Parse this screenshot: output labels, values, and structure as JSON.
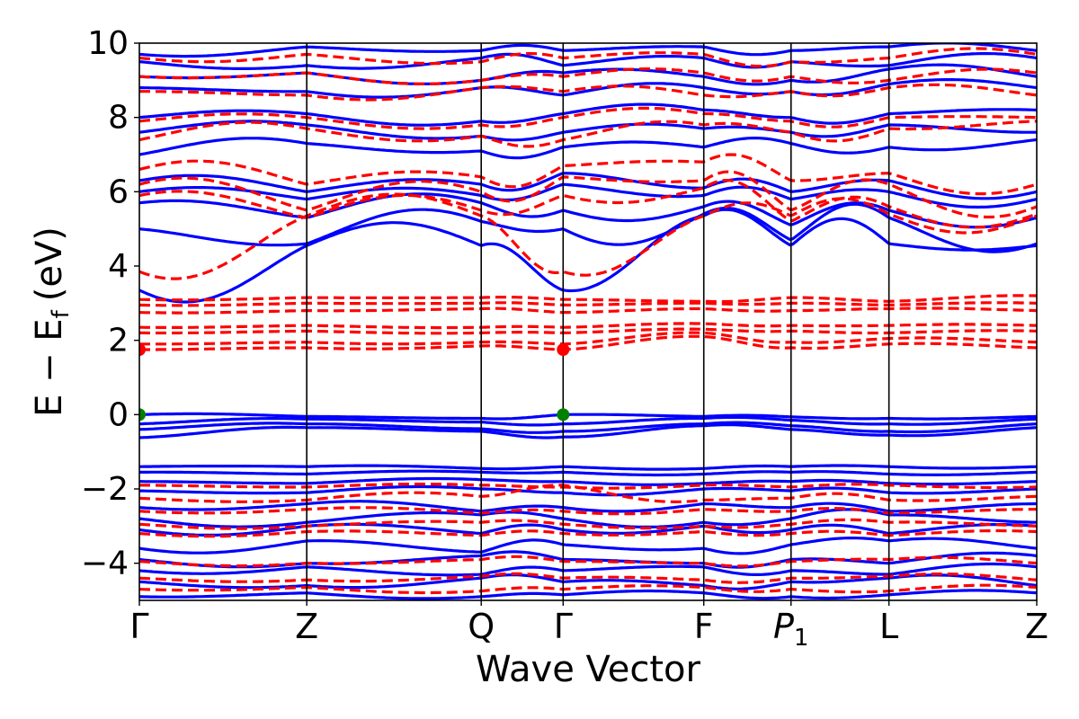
{
  "chart_data": {
    "type": "line",
    "title": "",
    "xlabel": "Wave Vector",
    "ylabel_main": "E − E",
    "ylabel_sub": "f",
    "ylabel_unit": "(eV)",
    "ylim": [
      -5,
      10
    ],
    "yticks": [
      -4,
      -2,
      0,
      2,
      4,
      6,
      8,
      10
    ],
    "ytick_labels": [
      "−4",
      "−2",
      "0",
      "2",
      "4",
      "6",
      "8",
      "10"
    ],
    "kpath": {
      "distances": [
        0,
        0.94,
        1.92,
        2.38,
        3.17,
        3.66,
        4.21,
        5.04
      ],
      "labels": [
        {
          "main": "Γ",
          "sub": ""
        },
        {
          "main": "Z",
          "sub": ""
        },
        {
          "main": "Q",
          "sub": ""
        },
        {
          "main": "Γ",
          "sub": ""
        },
        {
          "main": "F",
          "sub": ""
        },
        {
          "main": "P",
          "sub": "1"
        },
        {
          "main": "L",
          "sub": ""
        },
        {
          "main": "Z",
          "sub": ""
        }
      ]
    },
    "series": [
      {
        "color": "#0000ff",
        "style": "solid",
        "bands": [
          {
            "nodes": [
              -0.62,
              -0.35,
              -0.45,
              -0.6,
              -0.3,
              -0.4,
              -0.55,
              -0.35
            ],
            "amp": 0.06
          },
          {
            "nodes": [
              -0.4,
              -0.25,
              -0.38,
              -0.45,
              -0.25,
              -0.3,
              -0.45,
              -0.25
            ],
            "amp": 0.06
          },
          {
            "nodes": [
              -0.25,
              -0.12,
              -0.2,
              -0.25,
              -0.1,
              -0.15,
              -0.25,
              -0.12
            ],
            "amp": 0.05
          },
          {
            "nodes": [
              0.0,
              -0.05,
              -0.1,
              0.0,
              -0.05,
              -0.06,
              -0.1,
              -0.05
            ],
            "amp": 0.04
          },
          {
            "nodes": [
              3.35,
              4.55,
              4.55,
              3.35,
              5.35,
              4.55,
              4.6,
              4.55
            ],
            "amp": 0.7
          },
          {
            "nodes": [
              5.0,
              4.6,
              5.2,
              5.0,
              5.4,
              4.7,
              5.3,
              4.6
            ],
            "amp": 0.6
          },
          {
            "nodes": [
              5.7,
              5.3,
              5.7,
              5.5,
              5.6,
              5.1,
              5.5,
              5.3
            ],
            "amp": 0.4
          },
          {
            "nodes": [
              6.0,
              5.8,
              5.9,
              6.2,
              5.9,
              5.8,
              6.0,
              5.8
            ],
            "amp": 0.3
          },
          {
            "nodes": [
              6.3,
              6.0,
              6.2,
              6.5,
              6.1,
              6.0,
              6.3,
              6.0
            ],
            "amp": 0.3
          },
          {
            "nodes": [
              7.0,
              7.3,
              7.1,
              7.2,
              7.2,
              7.3,
              7.2,
              7.4
            ],
            "amp": 0.25
          },
          {
            "nodes": [
              7.6,
              7.8,
              7.5,
              7.6,
              7.7,
              7.6,
              7.8,
              7.6
            ],
            "amp": 0.2
          },
          {
            "nodes": [
              8.0,
              8.1,
              7.9,
              8.1,
              8.2,
              8.0,
              8.1,
              8.2
            ],
            "amp": 0.2
          },
          {
            "nodes": [
              8.8,
              8.7,
              8.8,
              8.6,
              8.8,
              8.7,
              8.9,
              8.8
            ],
            "amp": 0.2
          },
          {
            "nodes": [
              9.1,
              9.2,
              9.0,
              9.2,
              9.1,
              9.0,
              9.3,
              9.1
            ],
            "amp": 0.2
          },
          {
            "nodes": [
              9.5,
              9.4,
              9.6,
              9.4,
              9.6,
              9.5,
              9.4,
              9.6
            ],
            "amp": 0.2
          },
          {
            "nodes": [
              9.7,
              9.9,
              9.8,
              9.8,
              9.9,
              9.8,
              9.9,
              9.8
            ],
            "amp": 0.15
          },
          {
            "nodes": [
              -1.4,
              -1.4,
              -1.45,
              -1.4,
              -1.45,
              -1.4,
              -1.4,
              -1.4
            ],
            "amp": 0.05
          },
          {
            "nodes": [
              -1.55,
              -1.6,
              -1.55,
              -1.55,
              -1.6,
              -1.55,
              -1.6,
              -1.55
            ],
            "amp": 0.05
          },
          {
            "nodes": [
              -1.8,
              -1.85,
              -1.75,
              -1.8,
              -1.85,
              -1.8,
              -1.85,
              -1.8
            ],
            "amp": 0.06
          },
          {
            "nodes": [
              -2.05,
              -2.1,
              -2.0,
              -2.1,
              -2.0,
              -2.05,
              -2.1,
              -2.0
            ],
            "amp": 0.1
          },
          {
            "nodes": [
              -2.5,
              -2.4,
              -2.6,
              -2.5,
              -2.4,
              -2.5,
              -2.6,
              -2.4
            ],
            "amp": 0.15
          },
          {
            "nodes": [
              -2.8,
              -2.9,
              -2.7,
              -2.8,
              -2.9,
              -2.8,
              -2.7,
              -2.9
            ],
            "amp": 0.2
          },
          {
            "nodes": [
              -3.1,
              -3.0,
              -3.2,
              -3.1,
              -3.0,
              -3.1,
              -3.2,
              -3.0
            ],
            "amp": 0.2
          },
          {
            "nodes": [
              -3.6,
              -3.4,
              -3.7,
              -3.5,
              -3.6,
              -3.5,
              -3.4,
              -3.6
            ],
            "amp": 0.2
          },
          {
            "nodes": [
              -3.9,
              -4.0,
              -3.8,
              -3.9,
              -4.0,
              -3.9,
              -4.0,
              -3.8
            ],
            "amp": 0.15
          },
          {
            "nodes": [
              -4.2,
              -4.1,
              -4.3,
              -4.2,
              -4.1,
              -4.2,
              -4.3,
              -4.1
            ],
            "amp": 0.15
          },
          {
            "nodes": [
              -4.5,
              -4.6,
              -4.4,
              -4.5,
              -4.6,
              -4.5,
              -4.4,
              -4.6
            ],
            "amp": 0.15
          },
          {
            "nodes": [
              -4.9,
              -4.8,
              -4.9,
              -4.85,
              -4.8,
              -4.9,
              -4.85,
              -4.8
            ],
            "amp": 0.1
          }
        ]
      },
      {
        "color": "#ff0000",
        "style": "dashed",
        "bands": [
          {
            "nodes": [
              1.75,
              1.8,
              1.85,
              1.75,
              2.1,
              1.8,
              1.9,
              1.8
            ],
            "amp": 0.05
          },
          {
            "nodes": [
              1.9,
              1.95,
              1.95,
              1.9,
              2.2,
              1.95,
              2.05,
              1.95
            ],
            "amp": 0.05
          },
          {
            "nodes": [
              2.2,
              2.25,
              2.2,
              2.2,
              2.3,
              2.25,
              2.2,
              2.25
            ],
            "amp": 0.03
          },
          {
            "nodes": [
              2.35,
              2.4,
              2.35,
              2.35,
              2.45,
              2.4,
              2.4,
              2.4
            ],
            "amp": 0.03
          },
          {
            "nodes": [
              2.75,
              2.8,
              2.85,
              2.75,
              2.85,
              2.8,
              2.85,
              2.8
            ],
            "amp": 0.03
          },
          {
            "nodes": [
              2.95,
              3.0,
              3.0,
              2.95,
              3.0,
              3.0,
              2.95,
              3.0
            ],
            "amp": 0.03
          },
          {
            "nodes": [
              3.1,
              3.15,
              3.15,
              3.1,
              3.05,
              3.15,
              3.05,
              3.2
            ],
            "amp": 0.03
          },
          {
            "nodes": [
              3.85,
              5.35,
              5.35,
              3.85,
              5.35,
              5.35,
              5.4,
              5.35
            ],
            "amp": 0.6
          },
          {
            "nodes": [
              5.9,
              5.3,
              5.5,
              5.9,
              6.1,
              5.2,
              5.6,
              5.4
            ],
            "amp": 0.5
          },
          {
            "nodes": [
              6.2,
              5.5,
              6.0,
              6.4,
              6.3,
              5.5,
              6.2,
              5.6
            ],
            "amp": 0.5
          },
          {
            "nodes": [
              6.6,
              6.2,
              6.4,
              6.7,
              6.8,
              6.3,
              6.5,
              6.2
            ],
            "amp": 0.4
          },
          {
            "nodes": [
              7.4,
              7.7,
              7.5,
              7.4,
              7.8,
              7.6,
              7.7,
              7.9
            ],
            "amp": 0.3
          },
          {
            "nodes": [
              7.9,
              8.0,
              7.8,
              8.0,
              8.1,
              7.9,
              8.0,
              8.0
            ],
            "amp": 0.2
          },
          {
            "nodes": [
              8.7,
              8.6,
              8.8,
              8.7,
              8.6,
              8.7,
              8.8,
              8.6
            ],
            "amp": 0.2
          },
          {
            "nodes": [
              9.1,
              9.2,
              9.0,
              9.1,
              9.2,
              9.1,
              9.0,
              9.2
            ],
            "amp": 0.2
          },
          {
            "nodes": [
              9.6,
              9.7,
              9.5,
              9.6,
              9.7,
              9.5,
              9.6,
              9.7
            ],
            "amp": 0.2
          },
          {
            "nodes": [
              -1.9,
              -1.95,
              -1.9,
              -1.95,
              -1.9,
              -1.95,
              -1.9,
              -1.95
            ],
            "amp": 0.05
          },
          {
            "nodes": [
              -2.25,
              -2.3,
              -2.2,
              -1.9,
              -2.3,
              -2.25,
              -2.3,
              -2.2
            ],
            "amp": 0.15
          },
          {
            "nodes": [
              -2.6,
              -2.55,
              -2.65,
              -2.6,
              -2.55,
              -2.6,
              -2.65,
              -2.55
            ],
            "amp": 0.1
          },
          {
            "nodes": [
              -2.95,
              -3.0,
              -2.9,
              -2.95,
              -3.0,
              -2.95,
              -2.9,
              -3.0
            ],
            "amp": 0.1
          },
          {
            "nodes": [
              -3.2,
              -3.15,
              -3.25,
              -3.2,
              -3.15,
              -3.2,
              -3.25,
              -3.15
            ],
            "amp": 0.1
          },
          {
            "nodes": [
              -3.95,
              -4.0,
              -3.9,
              -3.95,
              -4.0,
              -3.95,
              -3.9,
              -4.0
            ],
            "amp": 0.1
          },
          {
            "nodes": [
              -4.4,
              -4.45,
              -4.35,
              -4.4,
              -4.45,
              -4.4,
              -4.35,
              -4.45
            ],
            "amp": 0.1
          },
          {
            "nodes": [
              -4.7,
              -4.65,
              -4.75,
              -4.7,
              -4.65,
              -4.7,
              -4.75,
              -4.65
            ],
            "amp": 0.1
          }
        ]
      }
    ],
    "markers": [
      {
        "k": 0,
        "energy": 1.75,
        "color": "#ff0000"
      },
      {
        "k": 2.38,
        "energy": 1.75,
        "color": "#ff0000"
      },
      {
        "k": 0,
        "energy": 0.0,
        "color": "#008000"
      },
      {
        "k": 2.38,
        "energy": 0.0,
        "color": "#008000"
      }
    ],
    "grid": false,
    "legend": "none"
  }
}
